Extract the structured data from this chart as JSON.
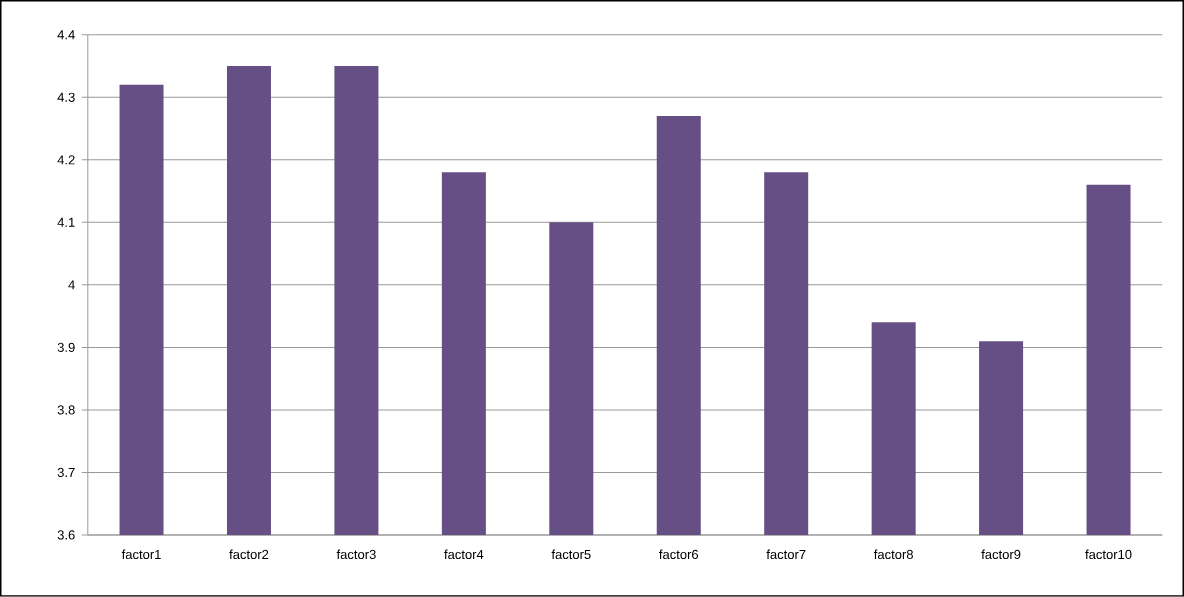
{
  "chart_data": {
    "type": "bar",
    "categories": [
      "factor1",
      "factor2",
      "factor3",
      "factor4",
      "factor5",
      "factor6",
      "factor7",
      "factor8",
      "factor9",
      "factor10"
    ],
    "values": [
      4.32,
      4.35,
      4.35,
      4.18,
      4.1,
      4.27,
      4.18,
      3.94,
      3.91,
      4.16
    ],
    "color": "#664f84",
    "ylim": [
      3.6,
      4.4
    ],
    "yticks": [
      3.6,
      3.7,
      3.8,
      3.9,
      4,
      4.1,
      4.2,
      4.3,
      4.4
    ],
    "grid": "y"
  }
}
